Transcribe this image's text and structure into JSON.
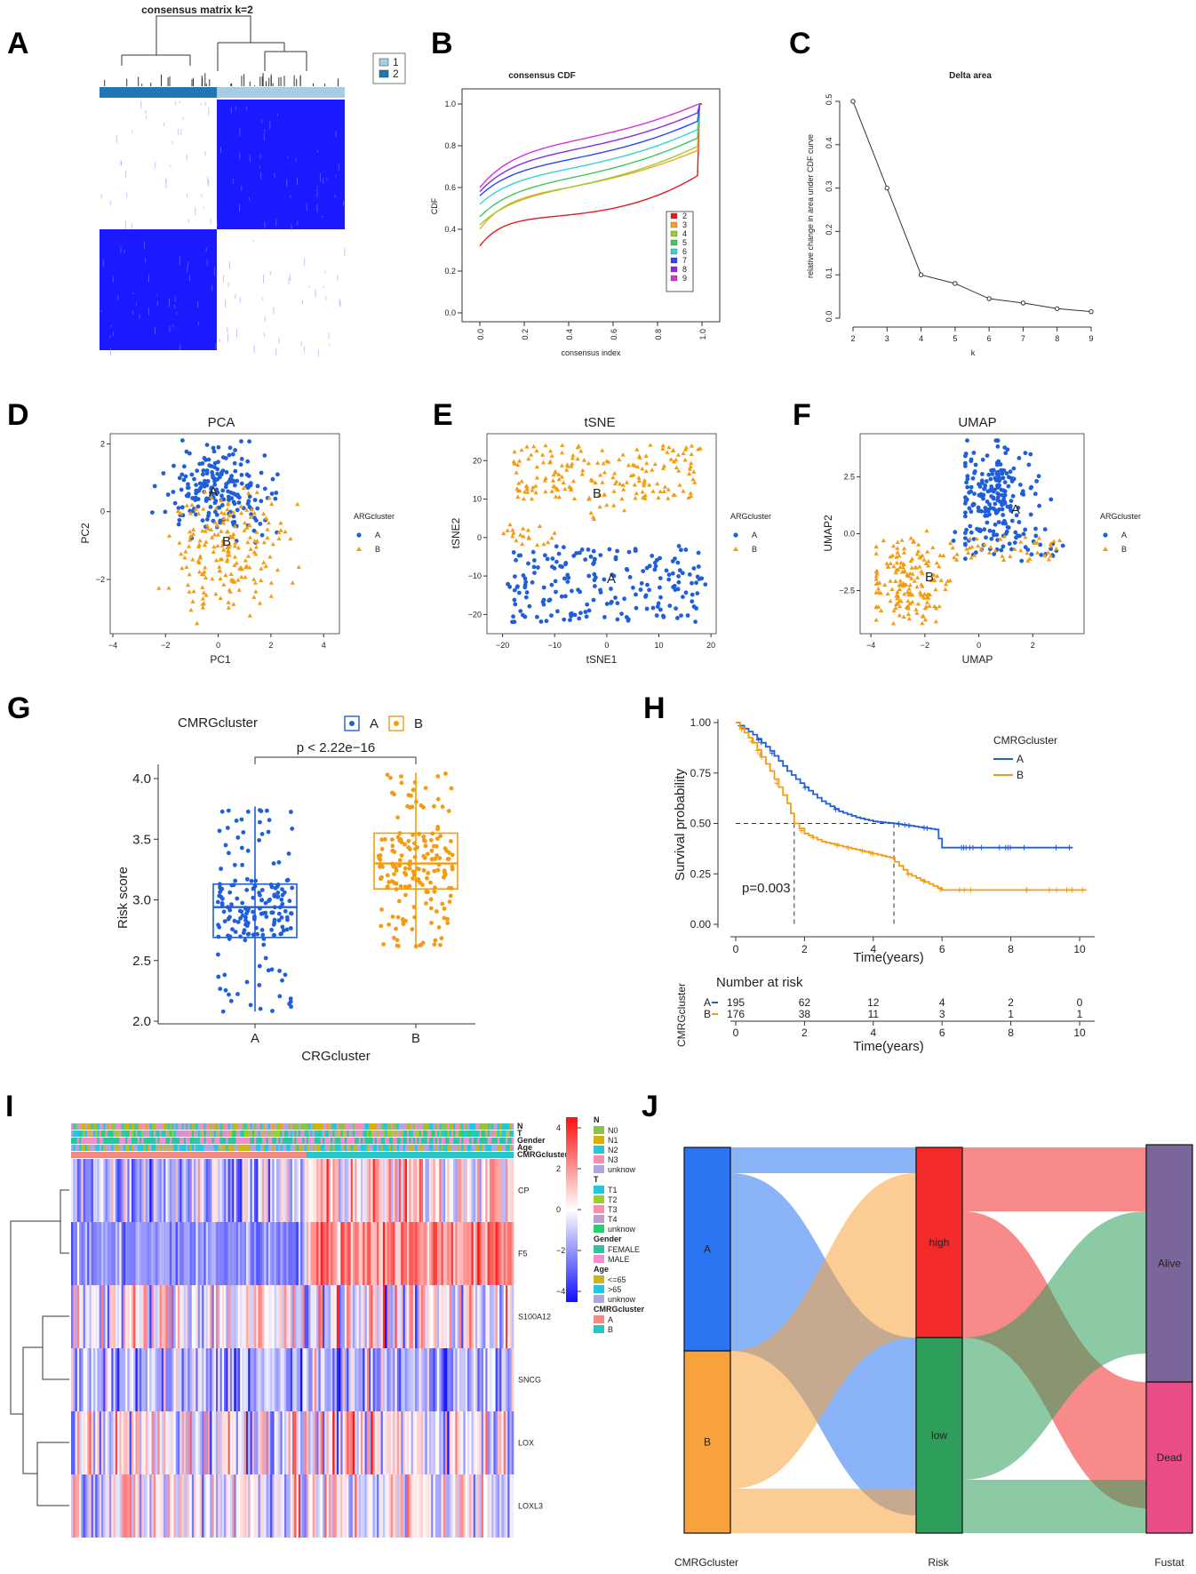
{
  "chart_data": [
    {
      "panel": "A",
      "type": "heatmap",
      "title": "consensus matrix k=2",
      "legend": [
        "1",
        "2"
      ],
      "colors": {
        "c1": "#a6cde3",
        "c2": "#1f78b4",
        "fill": "#1a1aff"
      }
    },
    {
      "panel": "B",
      "type": "line",
      "title": "consensus CDF",
      "xlabel": "consensus index",
      "ylabel": "CDF",
      "xticks": [
        "0.0",
        "0.2",
        "0.4",
        "0.6",
        "0.8",
        "1.0"
      ],
      "yticks": [
        "0.0",
        "0.2",
        "0.4",
        "0.6",
        "0.8",
        "1.0"
      ],
      "series": [
        {
          "name": "2",
          "start": 0.32,
          "color": "#e41a1c"
        },
        {
          "name": "3",
          "start": 0.4,
          "color": "#f5a623"
        },
        {
          "name": "4",
          "start": 0.42,
          "color": "#9acd32"
        },
        {
          "name": "5",
          "start": 0.46,
          "color": "#3bc85e"
        },
        {
          "name": "6",
          "start": 0.52,
          "color": "#32d4d4"
        },
        {
          "name": "7",
          "start": 0.56,
          "color": "#2b46ff"
        },
        {
          "name": "8",
          "start": 0.58,
          "color": "#8a2be2"
        },
        {
          "name": "9",
          "start": 0.6,
          "color": "#d633d6"
        }
      ]
    },
    {
      "panel": "C",
      "type": "line",
      "title": "Delta area",
      "xlabel": "k",
      "ylabel": "relative change in area under CDF curve",
      "x": [
        2,
        3,
        4,
        5,
        6,
        7,
        8,
        9
      ],
      "y": [
        0.5,
        0.3,
        0.1,
        0.08,
        0.045,
        0.035,
        0.022,
        0.015
      ],
      "xticks": [
        "2",
        "3",
        "4",
        "5",
        "6",
        "7",
        "8",
        "9"
      ],
      "yticks": [
        "0.0",
        "0.1",
        "0.2",
        "0.3",
        "0.4",
        "0.5"
      ]
    },
    {
      "panel": "D",
      "type": "scatter",
      "title": "PCA",
      "xlabel": "PC1",
      "ylabel": "PC2",
      "xticks": [
        "-4",
        "-2",
        "0",
        "2",
        "4"
      ],
      "yticks": [
        "-2",
        "0",
        "2"
      ],
      "legend_title": "ARGcluster",
      "groups": [
        {
          "name": "A",
          "label": "A",
          "color": "#1f5fd9"
        },
        {
          "name": "B",
          "label": "B",
          "color": "#f39c12"
        }
      ]
    },
    {
      "panel": "E",
      "type": "scatter",
      "title": "tSNE",
      "xlabel": "tSNE1",
      "ylabel": "tSNE2",
      "xticks": [
        "-20",
        "-10",
        "0",
        "10",
        "20"
      ],
      "yticks": [
        "-20",
        "-10",
        "0",
        "10",
        "20"
      ],
      "legend_title": "ARGcluster",
      "groups": [
        {
          "name": "A",
          "label": "A"
        },
        {
          "name": "B",
          "label": "B"
        }
      ]
    },
    {
      "panel": "F",
      "type": "scatter",
      "title": "UMAP",
      "xlabel": "UMAP",
      "ylabel": "UMAP2",
      "xticks": [
        "-4",
        "-2",
        "0",
        "2"
      ],
      "yticks": [
        "-2.5",
        "0.0",
        "2.5"
      ],
      "legend_title": "ARGcluster",
      "groups": [
        {
          "name": "A",
          "label": "A"
        },
        {
          "name": "B",
          "label": "B"
        }
      ]
    },
    {
      "panel": "G",
      "type": "box",
      "legend_title": "CMRGcluster",
      "categories": [
        "A",
        "B"
      ],
      "xlabel": "CRGcluster",
      "ylabel": "Risk score",
      "pvalue": "p < 2.22e−16",
      "yticks": [
        "2.0",
        "2.5",
        "3.0",
        "3.5",
        "4.0"
      ],
      "stats": [
        {
          "group": "A",
          "min": 2.08,
          "q1": 2.69,
          "median": 2.94,
          "q3": 3.13,
          "max": 3.77
        },
        {
          "group": "B",
          "min": 2.6,
          "q1": 3.09,
          "median": 3.3,
          "q3": 3.55,
          "max": 4.05
        }
      ]
    },
    {
      "panel": "H",
      "type": "line",
      "legend_title": "CMRGcluster",
      "xlabel": "Time(years)",
      "ylabel": "Survival probability",
      "pvalue": "p=0.003",
      "risk_title": "Number at risk",
      "risk_ylabel": "CMRGcluster",
      "xticks": [
        "0",
        "2",
        "4",
        "6",
        "8",
        "10"
      ],
      "yticks": [
        "0.00",
        "0.25",
        "0.50",
        "0.75",
        "1.00"
      ],
      "series": [
        {
          "name": "A",
          "color": "#1f5fd9",
          "risk": [
            "195",
            "62",
            "12",
            "4",
            "2",
            "0"
          ],
          "t": [
            0,
            0.5,
            1,
            1.5,
            2,
            2.5,
            3,
            3.5,
            4,
            4.6,
            5.8,
            6,
            8,
            9.8
          ],
          "s": [
            1.0,
            0.94,
            0.86,
            0.76,
            0.68,
            0.61,
            0.56,
            0.53,
            0.51,
            0.5,
            0.47,
            0.38,
            0.38,
            0.38
          ]
        },
        {
          "name": "B",
          "color": "#f39c12",
          "risk": [
            "176",
            "38",
            "11",
            "3",
            "1",
            "1"
          ],
          "t": [
            0,
            0.5,
            1,
            1.5,
            1.7,
            2,
            2.5,
            3,
            3.5,
            4,
            4.5,
            5,
            6,
            7,
            10.2
          ],
          "s": [
            1.0,
            0.9,
            0.76,
            0.6,
            0.5,
            0.45,
            0.41,
            0.39,
            0.37,
            0.35,
            0.33,
            0.25,
            0.17,
            0.17,
            0.17
          ]
        }
      ]
    },
    {
      "panel": "I",
      "type": "heatmap",
      "rows": [
        "CP",
        "F5",
        "S100A12",
        "SNCG",
        "LOX",
        "LOXL3"
      ],
      "annotation_rows": [
        "N",
        "T",
        "Gender",
        "Age",
        "CMRGcluster"
      ],
      "colorbar_ticks": [
        "4",
        "2",
        "0",
        "-2",
        "-4"
      ],
      "legend": [
        {
          "title": "N",
          "items": [
            {
              "label": "N0",
              "color": "#8bc34a"
            },
            {
              "label": "N1",
              "color": "#d4b106"
            },
            {
              "label": "N2",
              "color": "#26c6da"
            },
            {
              "label": "N3",
              "color": "#f48fb1"
            },
            {
              "label": "unknow",
              "color": "#b0a4e3"
            }
          ]
        },
        {
          "title": "T",
          "items": [
            {
              "label": "T1",
              "color": "#26c6da"
            },
            {
              "label": "T2",
              "color": "#9acd32"
            },
            {
              "label": "T3",
              "color": "#f48fb1"
            },
            {
              "label": "T4",
              "color": "#c39bd3"
            },
            {
              "label": "unknow",
              "color": "#2ecc71"
            }
          ]
        },
        {
          "title": "Gender",
          "items": [
            {
              "label": "FEMALE",
              "color": "#2ec4a0"
            },
            {
              "label": "MALE",
              "color": "#f48fcf"
            }
          ]
        },
        {
          "title": "Age",
          "items": [
            {
              "label": "<=65",
              "color": "#c5b71f"
            },
            {
              "label": ">65",
              "color": "#26c6da"
            },
            {
              "label": "unknow",
              "color": "#b0a4e3"
            }
          ]
        },
        {
          "title": "CMRGcluster",
          "items": [
            {
              "label": "A",
              "color": "#f28b82"
            },
            {
              "label": "B",
              "color": "#26c6c6"
            }
          ]
        }
      ]
    },
    {
      "panel": "J",
      "type": "sankey",
      "axes": [
        "CMRGcluster",
        "Risk",
        "Fustat"
      ],
      "nodes": [
        {
          "label": "A",
          "color": "#2a74f2"
        },
        {
          "label": "B",
          "color": "#f8a23b"
        },
        {
          "label": "high",
          "color": "#f22a2a"
        },
        {
          "label": "low",
          "color": "#2e9e5b"
        },
        {
          "label": "Alive",
          "color": "#7a6699"
        },
        {
          "label": "Dead",
          "color": "#e94c86"
        }
      ]
    }
  ]
}
